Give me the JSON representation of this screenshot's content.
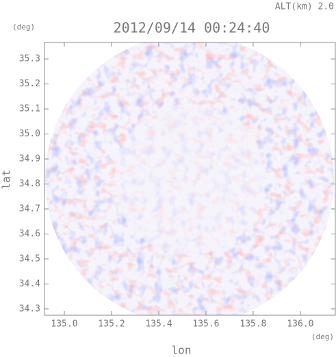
{
  "chart_data": {
    "type": "heatmap",
    "title": "2012/09/14 00:24:40",
    "subtitle": "ALT(km) 2.0",
    "x_label": "lon",
    "y_label": "lat",
    "x_unit": "(deg)",
    "y_unit": "(deg)",
    "xlim": [
      134.916,
      136.148
    ],
    "ylim": [
      34.275,
      35.366
    ],
    "xticks": [
      {
        "value": 135,
        "label": "135.0"
      },
      135.2,
      135.4,
      135.6,
      135.8,
      {
        "value": 136,
        "label": "136.0"
      }
    ],
    "yticks": [
      34.3,
      34.4,
      34.5,
      34.6,
      34.7,
      34.8,
      34.9,
      {
        "value": 35,
        "label": "35.0"
      },
      35.1,
      35.2,
      35.3
    ]
  }
}
